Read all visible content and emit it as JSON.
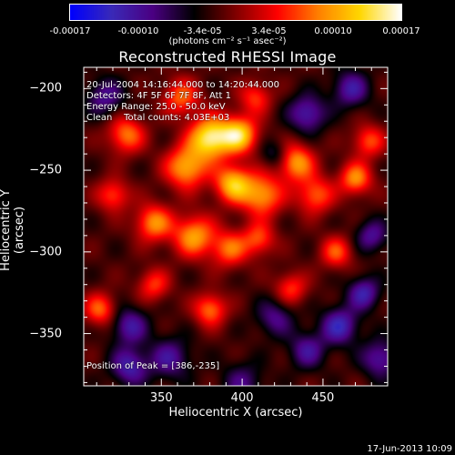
{
  "colorbar": {
    "tick_labels": [
      "-0.00017",
      "-0.00010",
      "-3.4e-05",
      "3.4e-05",
      "0.00010",
      "0.00017"
    ],
    "tick_values": [
      -0.00017,
      -0.0001,
      -3.4e-05,
      3.4e-05,
      0.0001,
      0.00017
    ],
    "units": "(photons cm⁻² s⁻¹ asec⁻²)",
    "range": [
      -0.00017,
      0.00017
    ],
    "gradient_colors": [
      "#0000ff",
      "#3a2ab8",
      "#4b0082",
      "#000000",
      "#800000",
      "#ff0000",
      "#ff8000",
      "#ffd700",
      "#ffffff"
    ]
  },
  "chart_data": {
    "type": "heatmap",
    "title": "Reconstructed RHESSI Image",
    "xlabel": "Heliocentric X (arcsec)",
    "ylabel": "Heliocentric Y (arcsec)",
    "xlim": [
      302,
      490
    ],
    "ylim": [
      -382,
      -187
    ],
    "x_ticks": [
      350,
      400,
      450
    ],
    "y_ticks": [
      -200,
      -250,
      -300,
      -350
    ],
    "annotations": [
      "20-Jul-2004 14:16:44.000 to 14:20:44.000",
      "Detectors: 4F 5F 6F 7F 8F, Att 1",
      "Energy Range: 25.0 - 50.0 keV",
      "Clean    Total counts: 4.03E+03"
    ],
    "peak_text": "Position of Peak = [386,-235]",
    "peak_position": [
      386,
      -235
    ],
    "sources": [
      {
        "x": 380,
        "y": -230,
        "amp": 1.0,
        "w": 9
      },
      {
        "x": 398,
        "y": -228,
        "amp": 0.85,
        "w": 8
      },
      {
        "x": 365,
        "y": -248,
        "amp": 0.75,
        "w": 9
      },
      {
        "x": 394,
        "y": -258,
        "amp": 0.8,
        "w": 8
      },
      {
        "x": 412,
        "y": -265,
        "amp": 0.7,
        "w": 9
      },
      {
        "x": 433,
        "y": -245,
        "amp": 0.7,
        "w": 8
      },
      {
        "x": 445,
        "y": -265,
        "amp": 0.55,
        "w": 8
      },
      {
        "x": 470,
        "y": -255,
        "amp": 0.65,
        "w": 7
      },
      {
        "x": 478,
        "y": -232,
        "amp": 0.5,
        "w": 7
      },
      {
        "x": 328,
        "y": -228,
        "amp": 0.6,
        "w": 8
      },
      {
        "x": 320,
        "y": -265,
        "amp": 0.5,
        "w": 7
      },
      {
        "x": 345,
        "y": -282,
        "amp": 0.65,
        "w": 8
      },
      {
        "x": 370,
        "y": -290,
        "amp": 0.7,
        "w": 9
      },
      {
        "x": 392,
        "y": -298,
        "amp": 0.55,
        "w": 8
      },
      {
        "x": 410,
        "y": -292,
        "amp": 0.5,
        "w": 7
      },
      {
        "x": 380,
        "y": -335,
        "amp": 0.6,
        "w": 7
      },
      {
        "x": 345,
        "y": -320,
        "amp": 0.45,
        "w": 7
      },
      {
        "x": 312,
        "y": -335,
        "amp": 0.55,
        "w": 7
      },
      {
        "x": 458,
        "y": -300,
        "amp": 0.5,
        "w": 7
      },
      {
        "x": 430,
        "y": -322,
        "amp": 0.45,
        "w": 7
      },
      {
        "x": 362,
        "y": -205,
        "amp": 0.55,
        "w": 8
      },
      {
        "x": 408,
        "y": -205,
        "amp": 0.45,
        "w": 7
      },
      {
        "x": 330,
        "y": -345,
        "amp": -0.5,
        "w": 8
      },
      {
        "x": 355,
        "y": -365,
        "amp": -0.45,
        "w": 9
      },
      {
        "x": 330,
        "y": -370,
        "amp": -0.55,
        "w": 8
      },
      {
        "x": 460,
        "y": -345,
        "amp": -0.6,
        "w": 8
      },
      {
        "x": 475,
        "y": -325,
        "amp": -0.55,
        "w": 7
      },
      {
        "x": 440,
        "y": -360,
        "amp": -0.45,
        "w": 8
      },
      {
        "x": 420,
        "y": -340,
        "amp": -0.4,
        "w": 8
      },
      {
        "x": 485,
        "y": -365,
        "amp": -0.5,
        "w": 8
      },
      {
        "x": 440,
        "y": -215,
        "amp": -0.55,
        "w": 8
      },
      {
        "x": 467,
        "y": -200,
        "amp": -0.5,
        "w": 8
      },
      {
        "x": 315,
        "y": -205,
        "amp": -0.45,
        "w": 8
      },
      {
        "x": 400,
        "y": -380,
        "amp": -0.35,
        "w": 9
      },
      {
        "x": 480,
        "y": -290,
        "amp": -0.45,
        "w": 7
      },
      {
        "x": 420,
        "y": -240,
        "amp": -0.3,
        "w": 6
      }
    ]
  },
  "footer": {
    "date": "17-Jun-2013 10:09"
  }
}
